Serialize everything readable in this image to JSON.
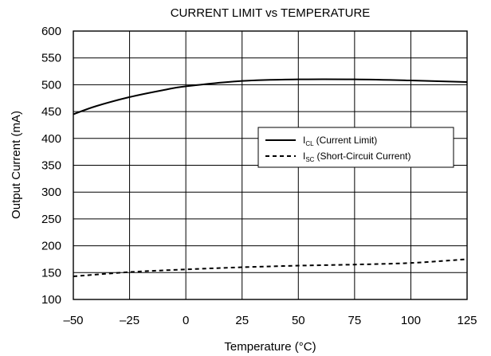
{
  "chart_data": {
    "type": "line",
    "title": "CURRENT LIMIT vs TEMPERATURE",
    "xlabel": "Temperature (°C)",
    "ylabel": "Output Current (mA)",
    "xlim": [
      -50,
      125
    ],
    "ylim": [
      100,
      600
    ],
    "x_ticks": [
      -50,
      -25,
      0,
      25,
      50,
      75,
      100,
      125
    ],
    "x_tick_labels": [
      "–50",
      "–25",
      "0",
      "25",
      "50",
      "75",
      "100",
      "125"
    ],
    "y_ticks": [
      100,
      150,
      200,
      250,
      300,
      350,
      400,
      450,
      500,
      550,
      600
    ],
    "y_tick_labels": [
      "100",
      "150",
      "200",
      "250",
      "300",
      "350",
      "400",
      "450",
      "500",
      "550",
      "600"
    ],
    "grid": true,
    "legend_position": "right",
    "series": [
      {
        "symbol": "I",
        "subscript": "CL",
        "name": "(Current Limit)",
        "style": "solid",
        "x": [
          -50,
          -40,
          -25,
          -10,
          0,
          25,
          50,
          75,
          100,
          125
        ],
        "y": [
          445,
          460,
          477,
          490,
          497,
          507,
          510,
          510,
          508,
          505
        ]
      },
      {
        "symbol": "I",
        "subscript": "SC",
        "name": "(Short-Circuit Current)",
        "style": "dashed",
        "x": [
          -50,
          -25,
          0,
          25,
          50,
          75,
          100,
          125
        ],
        "y": [
          143,
          151,
          156,
          160,
          163,
          165,
          168,
          175
        ]
      }
    ]
  }
}
